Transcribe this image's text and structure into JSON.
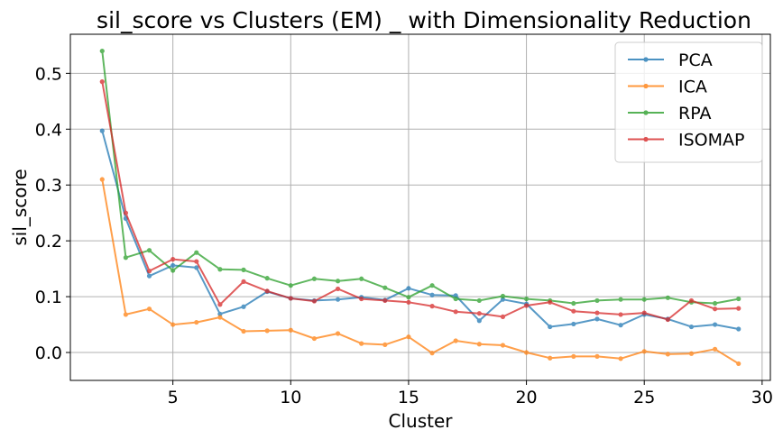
{
  "chart_data": {
    "type": "line",
    "title": "sil_score vs Clusters (EM) _ with Dimensionality Reduction",
    "xlabel": "Cluster",
    "ylabel": "sil_score",
    "xlim": [
      0.65,
      30.35
    ],
    "ylim": [
      -0.05,
      0.57
    ],
    "xticks": [
      5,
      10,
      15,
      20,
      25,
      30
    ],
    "yticks": [
      0.0,
      0.1,
      0.2,
      0.3,
      0.4,
      0.5
    ],
    "grid": true,
    "legend_position": "top-right",
    "x": [
      2,
      3,
      4,
      5,
      6,
      7,
      8,
      9,
      10,
      11,
      12,
      13,
      14,
      15,
      16,
      17,
      18,
      19,
      20,
      21,
      22,
      23,
      24,
      25,
      26,
      27,
      28,
      29
    ],
    "series": [
      {
        "name": "PCA",
        "color": "#1f77b4",
        "values": [
          0.397,
          0.24,
          0.137,
          0.156,
          0.152,
          0.069,
          0.082,
          0.109,
          0.097,
          0.093,
          0.095,
          0.099,
          0.094,
          0.115,
          0.103,
          0.102,
          0.057,
          0.095,
          0.087,
          0.046,
          0.051,
          0.06,
          0.049,
          0.068,
          0.06,
          0.046,
          0.05,
          0.042
        ]
      },
      {
        "name": "ICA",
        "color": "#ff7f0e",
        "values": [
          0.31,
          0.068,
          0.078,
          0.05,
          0.054,
          0.063,
          0.038,
          0.039,
          0.04,
          0.025,
          0.034,
          0.016,
          0.014,
          0.028,
          -0.001,
          0.021,
          0.015,
          0.013,
          0.0,
          -0.01,
          -0.007,
          -0.007,
          -0.011,
          0.002,
          -0.003,
          -0.002,
          0.006,
          -0.02
        ]
      },
      {
        "name": "RPA",
        "color": "#2ca02c",
        "values": [
          0.54,
          0.17,
          0.183,
          0.147,
          0.179,
          0.149,
          0.148,
          0.133,
          0.12,
          0.132,
          0.128,
          0.132,
          0.116,
          0.099,
          0.12,
          0.096,
          0.093,
          0.101,
          0.096,
          0.093,
          0.088,
          0.093,
          0.095,
          0.095,
          0.098,
          0.09,
          0.088,
          0.096
        ]
      },
      {
        "name": "ISOMAP",
        "color": "#d62728",
        "values": [
          0.485,
          0.25,
          0.146,
          0.167,
          0.163,
          0.086,
          0.127,
          0.11,
          0.097,
          0.092,
          0.114,
          0.096,
          0.093,
          0.09,
          0.083,
          0.073,
          0.07,
          0.064,
          0.084,
          0.09,
          0.074,
          0.071,
          0.068,
          0.071,
          0.059,
          0.093,
          0.078,
          0.079
        ]
      }
    ]
  }
}
